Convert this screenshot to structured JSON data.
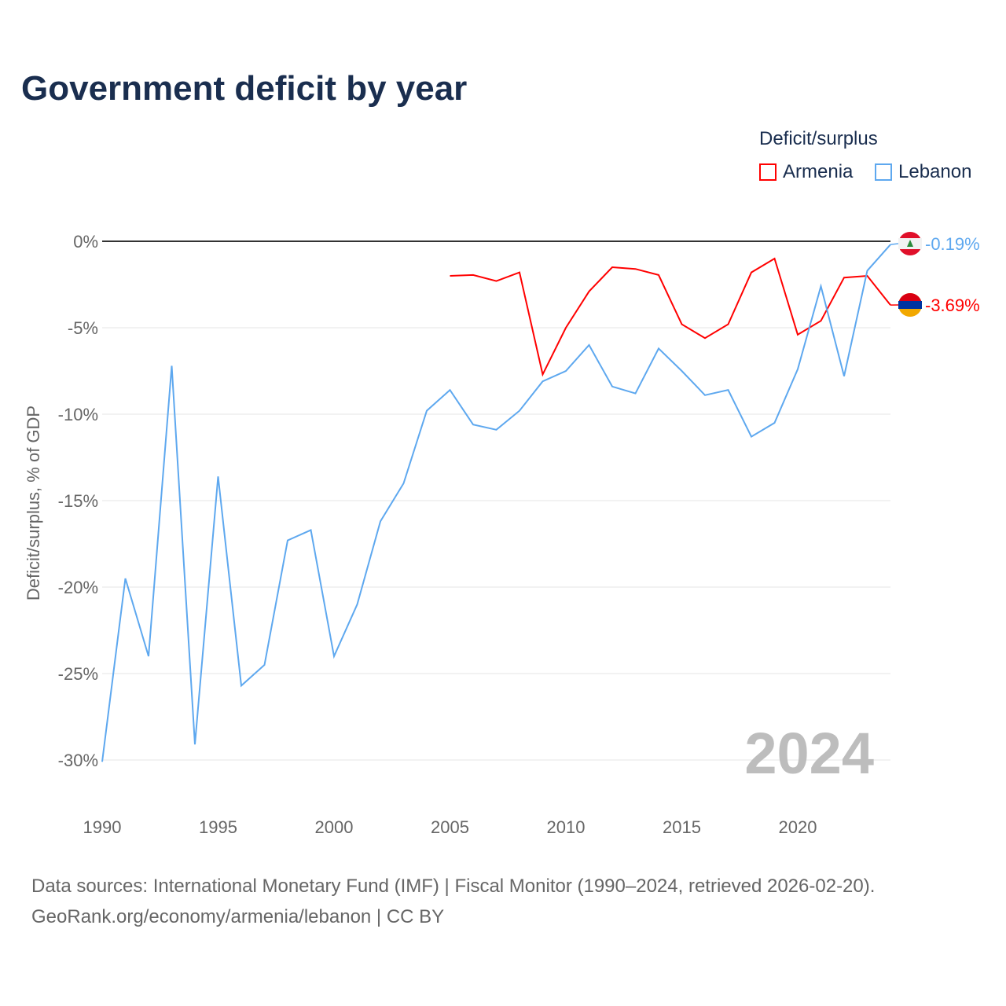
{
  "chart_data": {
    "type": "line",
    "title": "Government deficit by year",
    "xlabel": "",
    "ylabel": "Deficit/surplus, % of GDP",
    "xlim": [
      1990,
      2024
    ],
    "ylim": [
      -30,
      0
    ],
    "x_ticks": [
      "1990",
      "1995",
      "2000",
      "2005",
      "2010",
      "2015",
      "2020"
    ],
    "y_ticks": [
      {
        "v": 0,
        "label": "0%"
      },
      {
        "v": -5,
        "label": "-5%"
      },
      {
        "v": -10,
        "label": "-10%"
      },
      {
        "v": -15,
        "label": "-15%"
      },
      {
        "v": -20,
        "label": "-20%"
      },
      {
        "v": -25,
        "label": "-25%"
      },
      {
        "v": -30,
        "label": "-30%"
      }
    ],
    "legend_title": "Deficit/surplus",
    "legend_position": "top-right",
    "year_label": "2024",
    "series": [
      {
        "name": "Armenia",
        "color": "#ff0000",
        "end_label": "-3.69%",
        "x": [
          2005,
          2006,
          2007,
          2008,
          2009,
          2010,
          2011,
          2012,
          2013,
          2014,
          2015,
          2016,
          2017,
          2018,
          2019,
          2020,
          2021,
          2022,
          2023,
          2024
        ],
        "values": [
          -2.0,
          -1.95,
          -2.3,
          -1.8,
          -7.7,
          -5.0,
          -2.9,
          -1.5,
          -1.6,
          -1.95,
          -4.8,
          -5.6,
          -4.8,
          -1.8,
          -1.0,
          -5.4,
          -4.6,
          -2.1,
          -2.0,
          -3.69
        ]
      },
      {
        "name": "Lebanon",
        "color": "#5ea8ef",
        "end_label": "-0.19%",
        "x": [
          1990,
          1991,
          1992,
          1993,
          1994,
          1995,
          1996,
          1997,
          1998,
          1999,
          2000,
          2001,
          2002,
          2003,
          2004,
          2005,
          2006,
          2007,
          2008,
          2009,
          2010,
          2011,
          2012,
          2013,
          2014,
          2015,
          2016,
          2017,
          2018,
          2019,
          2020,
          2021,
          2022,
          2023,
          2024
        ],
        "values": [
          -30.1,
          -19.5,
          -24.0,
          -7.2,
          -29.1,
          -13.6,
          -25.7,
          -24.5,
          -17.3,
          -16.7,
          -24.0,
          -21.0,
          -16.2,
          -14.0,
          -9.8,
          -8.6,
          -10.6,
          -10.9,
          -9.8,
          -8.1,
          -7.5,
          -6.0,
          -8.4,
          -8.8,
          -6.2,
          -7.5,
          -8.9,
          -8.6,
          -11.3,
          -10.5,
          -7.4,
          -2.6,
          -7.8,
          -1.7,
          -0.19
        ]
      }
    ]
  },
  "source_line1": "Data sources: International Monetary Fund (IMF) | Fiscal Monitor (1990–2024, retrieved 2026-02-20).",
  "source_line2": "GeoRank.org/economy/armenia/lebanon | CC BY"
}
